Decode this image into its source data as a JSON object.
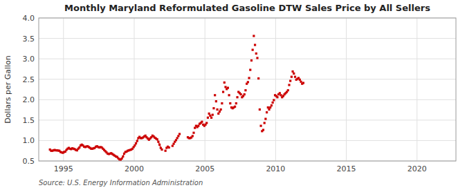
{
  "chart_data": {
    "type": "line",
    "title": "Monthly Maryland Reformulated Gasoline DTW Sales Price by All Sellers",
    "ylabel": "Dollars per Gallon",
    "annotation": "Source: U.S. Energy Information Administration",
    "xlim": [
      1993.25,
      2022.75
    ],
    "xticks": [
      1995,
      2000,
      2005,
      2010,
      2015,
      2020
    ],
    "ylim": [
      0.5,
      4.0
    ],
    "yticks": [
      0.5,
      {
        "value": 1.0,
        "label": "1.0"
      },
      1.5,
      {
        "value": 2.0,
        "label": "2.0"
      },
      2.5,
      {
        "value": 3.0,
        "label": "3.0"
      },
      3.5,
      {
        "value": 4.0,
        "label": "4.0"
      }
    ],
    "grid": true,
    "series": [
      {
        "type": "line",
        "color": "#CC0000",
        "marker": "square",
        "x": [
          1994.0416667,
          1994.125,
          1994.2083333,
          1994.2916667,
          1994.375,
          1994.4583333,
          1994.5416667,
          1994.625,
          1994.7083333,
          1994.7916667,
          1994.875,
          1994.9583333,
          1995.0416667,
          1995.125,
          1995.2083333,
          1995.2916667,
          1995.375,
          1995.4583333,
          1995.5416667,
          1995.625,
          1995.7083333,
          1995.7916667,
          1995.875,
          1995.9583333,
          1996.0416667,
          1996.125,
          1996.2083333,
          1996.2916667,
          1996.375,
          1996.4583333,
          1996.5416667,
          1996.625,
          1996.7083333,
          1996.7916667,
          1996.875,
          1996.9583333,
          1997.0416667,
          1997.125,
          1997.2083333,
          1997.2916667,
          1997.375,
          1997.4583333,
          1997.5416667,
          1997.625,
          1997.7083333,
          1997.7916667,
          1997.875,
          1997.9583333,
          1998.0416667,
          1998.125,
          1998.2083333,
          1998.2916667,
          1998.375,
          1998.4583333,
          1998.5416667,
          1998.625,
          1998.7083333,
          1998.7916667,
          1998.875,
          1998.9583333,
          1999.0416667,
          1999.125,
          1999.2083333,
          1999.2916667,
          1999.375,
          1999.4583333,
          1999.5416667,
          1999.625,
          1999.7083333,
          1999.7916667,
          1999.875,
          1999.9583333,
          2000.0416667,
          2000.125,
          2000.2083333,
          2000.2916667,
          2000.375,
          2000.4583333,
          2000.5416667,
          2000.625,
          2000.7083333,
          2000.7916667,
          2000.875,
          2000.9583333,
          2001.0416667,
          2001.125,
          2001.2083333,
          2001.2916667,
          2001.375,
          2001.4583333,
          2001.5416667,
          2001.625,
          2001.7083333,
          2001.7916667,
          2001.875,
          2001.9583333
        ],
        "values": [
          0.78,
          0.75,
          0.75,
          0.76,
          0.77,
          0.76,
          0.76,
          0.755,
          0.75,
          0.72,
          0.71,
          0.7,
          0.72,
          0.73,
          0.77,
          0.8,
          0.82,
          0.8,
          0.79,
          0.81,
          0.8,
          0.79,
          0.77,
          0.76,
          0.8,
          0.83,
          0.88,
          0.9,
          0.88,
          0.85,
          0.84,
          0.855,
          0.86,
          0.84,
          0.82,
          0.8,
          0.8,
          0.81,
          0.82,
          0.85,
          0.86,
          0.84,
          0.83,
          0.84,
          0.83,
          0.8,
          0.77,
          0.74,
          0.71,
          0.68,
          0.67,
          0.68,
          0.69,
          0.67,
          0.65,
          0.63,
          0.61,
          0.6,
          0.565,
          0.54,
          0.535,
          0.56,
          0.61,
          0.68,
          0.72,
          0.73,
          0.75,
          0.76,
          0.77,
          0.78,
          0.8,
          0.84,
          0.88,
          0.93,
          0.99,
          1.06,
          1.09,
          1.06,
          1.06,
          1.075,
          1.1,
          1.12,
          1.08,
          1.05,
          1.02,
          1.05,
          1.08,
          1.12,
          1.1,
          1.07,
          1.05,
          1.03,
          0.97,
          0.9,
          0.82,
          0.78
        ]
      },
      {
        "type": "scatter",
        "color": "#CC0000",
        "marker": "square",
        "x": [
          2002.2083333,
          2002.2916667,
          2002.375,
          2002.4583333,
          2002.7083333,
          2002.7916667,
          2002.875,
          2002.9583333,
          2003.0416667,
          2003.125,
          2003.2083333,
          2003.7916667,
          2003.875,
          2003.9583333,
          2004.0416667,
          2004.125,
          2004.2083333,
          2004.2916667,
          2004.375,
          2004.4583333,
          2004.5416667,
          2004.625,
          2004.7083333,
          2004.7916667,
          2004.875,
          2004.9583333,
          2005.0416667,
          2005.125,
          2005.2083333,
          2005.2916667,
          2005.375,
          2005.4583333,
          2005.5416667,
          2005.625,
          2005.7083333,
          2005.7916667,
          2005.875,
          2005.9583333,
          2006.0416667,
          2006.125,
          2006.2083333,
          2006.2916667,
          2006.375,
          2006.4583333,
          2006.5416667,
          2006.625,
          2006.7083333,
          2006.7916667,
          2006.875,
          2006.9583333,
          2007.0416667,
          2007.125,
          2007.2083333,
          2007.2916667,
          2007.375,
          2007.4583333,
          2007.5416667,
          2007.625,
          2007.7083333,
          2007.7916667,
          2007.875,
          2007.9583333,
          2008.0416667,
          2008.125,
          2008.2083333,
          2008.2916667,
          2008.375,
          2008.4583333,
          2008.5416667,
          2008.625,
          2008.7083333,
          2008.7916667,
          2008.875,
          2008.9583333,
          2009.0416667,
          2009.125,
          2009.2083333,
          2009.2916667,
          2009.375,
          2009.4583333,
          2009.5416667,
          2009.625,
          2009.7083333,
          2009.7916667,
          2009.875,
          2009.9583333,
          2010.0416667,
          2010.125,
          2010.2083333,
          2010.2916667,
          2010.375,
          2010.4583333,
          2010.5416667,
          2010.625,
          2010.7083333,
          2010.7916667,
          2010.875,
          2010.9583333,
          2011.0416667,
          2011.125,
          2011.2083333,
          2011.2916667,
          2011.375,
          2011.4583333,
          2011.5416667,
          2011.625,
          2011.7083333,
          2011.7916667,
          2011.875,
          2011.9583333
        ],
        "values": [
          0.75,
          0.82,
          0.85,
          0.83,
          0.87,
          0.92,
          0.97,
          1.01,
          1.06,
          1.11,
          1.16,
          1.08,
          1.06,
          1.06,
          1.075,
          1.11,
          1.19,
          1.31,
          1.36,
          1.33,
          1.36,
          1.41,
          1.43,
          1.46,
          1.39,
          1.36,
          1.39,
          1.43,
          1.56,
          1.66,
          1.61,
          1.56,
          1.63,
          1.79,
          2.11,
          1.96,
          1.76,
          1.66,
          1.71,
          1.76,
          1.91,
          2.19,
          2.42,
          2.31,
          2.26,
          2.29,
          2.11,
          1.91,
          1.81,
          1.79,
          1.81,
          1.83,
          1.91,
          2.06,
          2.19,
          2.16,
          2.13,
          2.06,
          2.09,
          2.13,
          2.23,
          2.39,
          2.43,
          2.53,
          2.73,
          2.96,
          3.22,
          3.56,
          3.34,
          3.13,
          3.02,
          2.52,
          1.76,
          1.36,
          1.23,
          1.26,
          1.43,
          1.53,
          1.69,
          1.81,
          1.76,
          1.81,
          1.86,
          1.93,
          1.99,
          2.11,
          2.09,
          2.06,
          2.13,
          2.16,
          2.11,
          2.06,
          2.09,
          2.13,
          2.16,
          2.19,
          2.23,
          2.36,
          2.46,
          2.56,
          2.69,
          2.64,
          2.56,
          2.49,
          2.51,
          2.53,
          2.49,
          2.44,
          2.39,
          2.41
        ]
      }
    ]
  }
}
